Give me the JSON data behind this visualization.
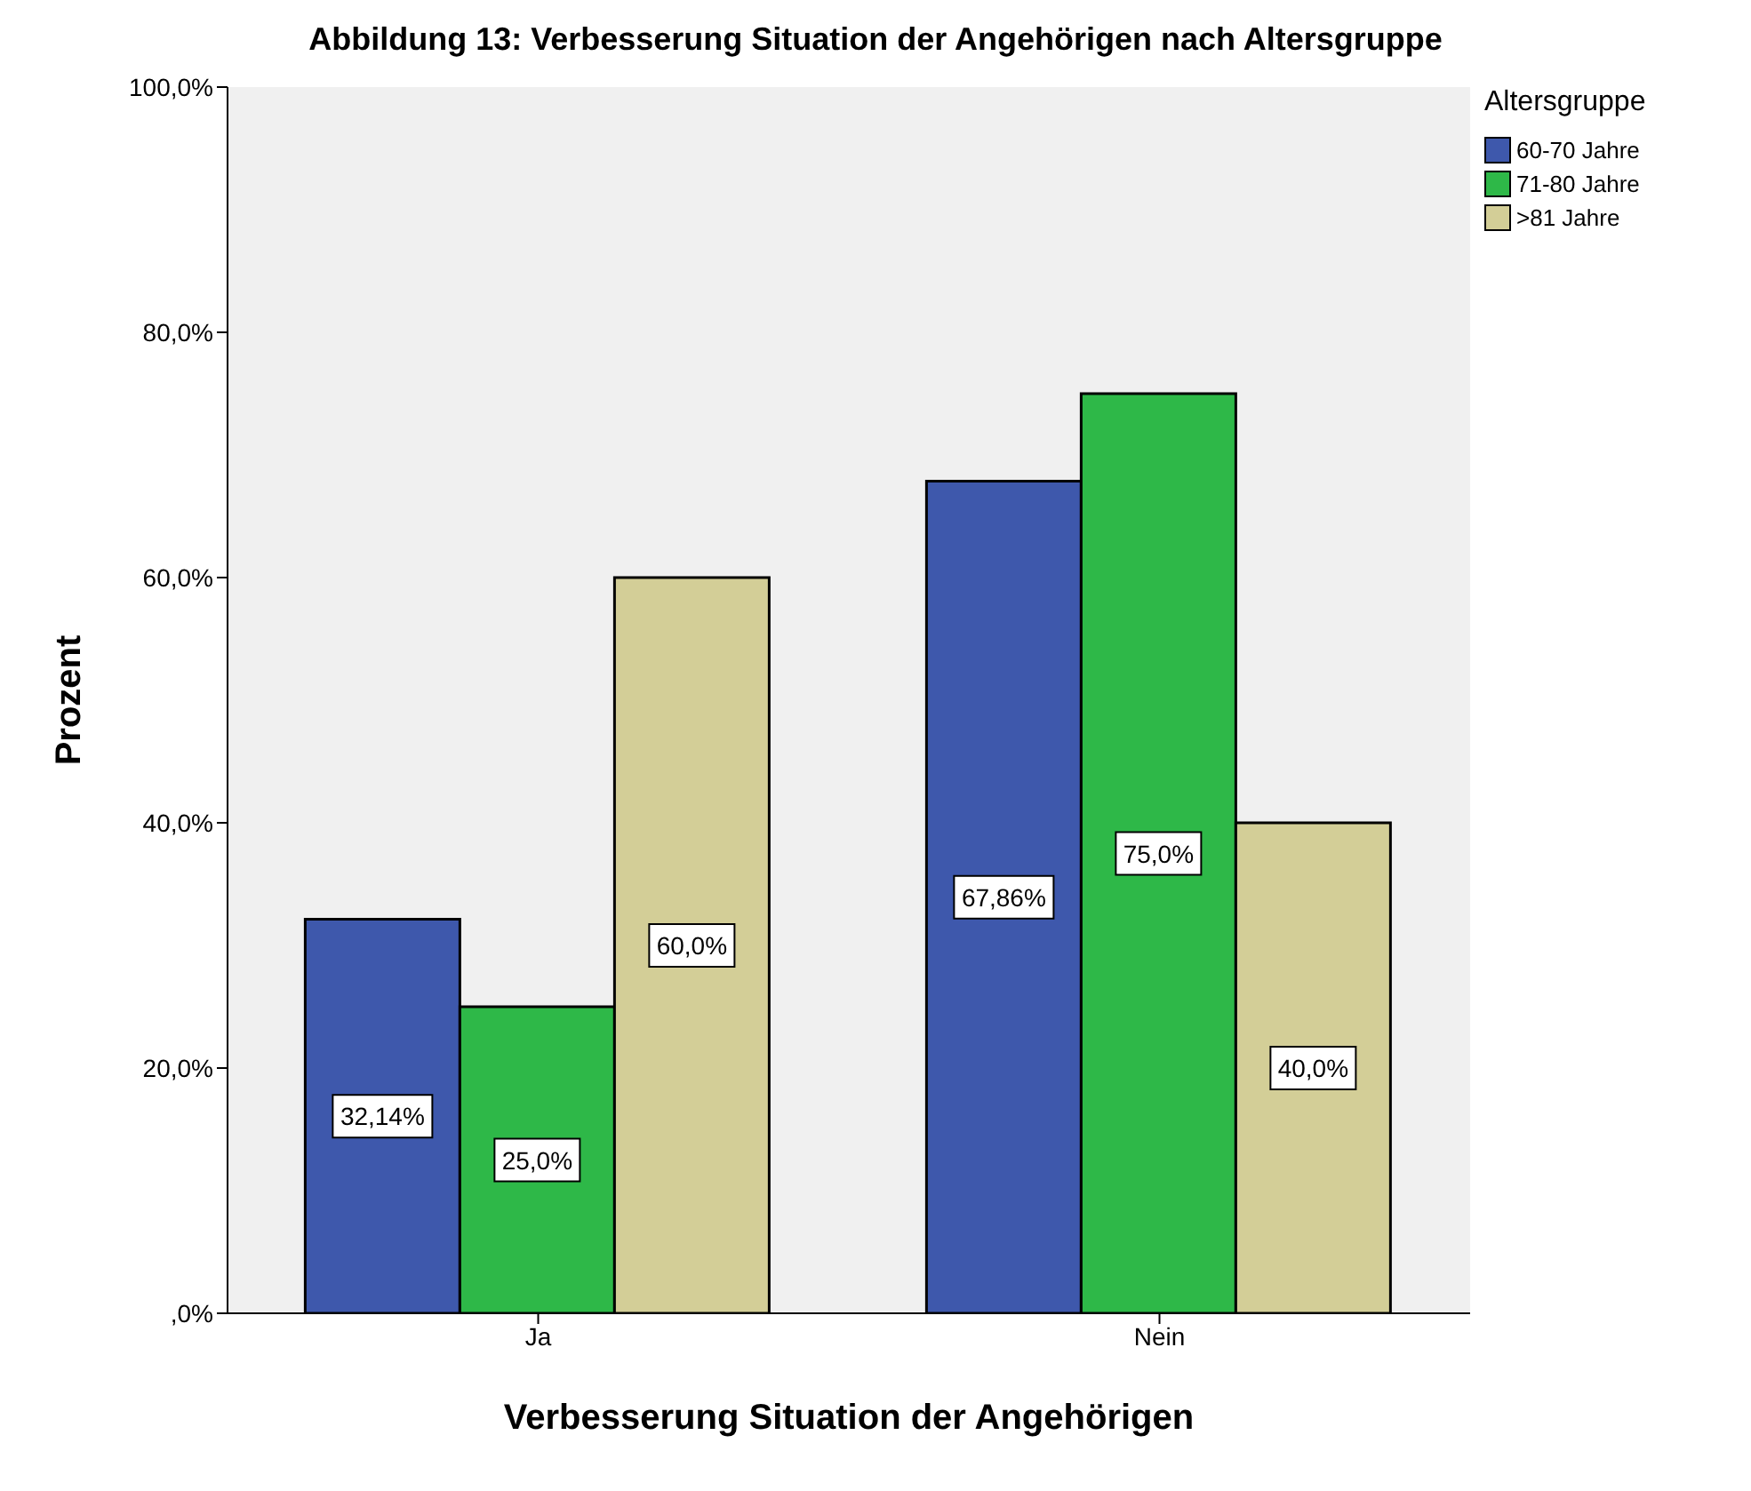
{
  "chart_data": {
    "type": "bar",
    "title": "Abbildung 13: Verbesserung Situation der Angehörigen nach Altersgruppe",
    "xlabel": "Verbesserung Situation der Angehörigen",
    "ylabel": "Prozent",
    "legend_title": "Altersgruppe",
    "legend": "top right",
    "categories": [
      "Ja",
      "Nein"
    ],
    "series": [
      {
        "name": "60-70 Jahre",
        "color": "#3e58ac",
        "values": [
          32.14,
          67.86
        ],
        "value_labels": [
          "32,14%",
          "67,86%"
        ]
      },
      {
        "name": "71-80 Jahre",
        "color": "#2eb848",
        "values": [
          25.0,
          75.0
        ],
        "value_labels": [
          "25,0%",
          "75,0%"
        ]
      },
      {
        "name": ">81 Jahre",
        "color": "#d3ce97",
        "values": [
          60.0,
          40.0
        ],
        "value_labels": [
          "60,0%",
          "40,0%"
        ]
      }
    ],
    "ylim": [
      0,
      100
    ],
    "yticks": [
      {
        "value": 0,
        "label": ",0%"
      },
      {
        "value": 20,
        "label": "20,0%"
      },
      {
        "value": 40,
        "label": "40,0%"
      },
      {
        "value": 60,
        "label": "60,0%"
      },
      {
        "value": 80,
        "label": "80,0%"
      },
      {
        "value": 100,
        "label": "100,0%"
      }
    ]
  }
}
